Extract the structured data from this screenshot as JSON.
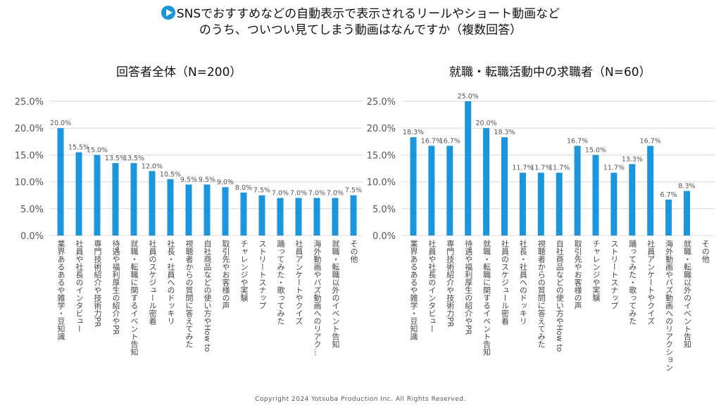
{
  "title": {
    "icon": "play-icon",
    "line1": "SNSでおすすめなどの自動表示で表示されるリールやショート動画など",
    "line2": "のうち、ついつい見てしまう動画はなんですか（複数回答）"
  },
  "footer": "Copyright 2024  Yotsuba  Production  Inc.   All  Rights  Reserved.",
  "chart_data": [
    {
      "type": "bar",
      "title": "回答者全体（N=200）",
      "ylim": [
        0,
        25
      ],
      "yticks": [
        "0.0%",
        "5.0%",
        "10.0%",
        "15.0%",
        "20.0%",
        "25.0%"
      ],
      "grid": true,
      "color": "#1a96dc",
      "categories": [
        "業界あるあるや雑学・豆知識",
        "社員や社長のインタビュー",
        "専門技術紹介や技術力PR",
        "待遇や福利厚生の紹介やPR",
        "就職・転職に関するイベント告知",
        "社員のスケジュール密着",
        "社長・社員へのドッキリ",
        "視聴者からの質問に答えてみた",
        "自社商品などの使い方やHow to",
        "取引先やお客様の声",
        "チャレンジや実験",
        "ストリートスナップ",
        "踊ってみた・歌ってみた",
        "社員アンケートやクイズ",
        "海外動画やバズ動画へのリアク…",
        "就職・転職以外のイベント告知",
        "その他"
      ],
      "values": [
        20.0,
        15.5,
        15.0,
        13.5,
        13.5,
        12.0,
        10.5,
        9.5,
        9.5,
        9.0,
        8.0,
        7.5,
        7.0,
        7.0,
        7.0,
        7.0,
        7.5
      ],
      "labels": [
        "20.0%",
        "15.5%",
        "15.0%",
        "13.5%",
        "13.5%",
        "12.0%",
        "10.5%",
        "9.5%",
        "9.5%",
        "9.0%",
        "8.0%",
        "7.5%",
        "7.0%",
        "7.0%",
        "7.0%",
        "7.0%",
        "7.5%"
      ]
    },
    {
      "type": "bar",
      "title": "就職・転職活動中の求職者（N=60）",
      "ylim": [
        0,
        25
      ],
      "yticks": [
        "0.0%",
        "5.0%",
        "10.0%",
        "15.0%",
        "20.0%",
        "25.0%"
      ],
      "grid": true,
      "color": "#1a96dc",
      "categories": [
        "業界あるあるや雑学・豆知識",
        "社員や社長のインタビュー",
        "専門技術紹介や技術力PR",
        "待遇や福利厚生の紹介やPR",
        "就職・転職に関するイベント告知",
        "社員のスケジュール密着",
        "社長・社員へのドッキリ",
        "視聴者からの質問に答えてみた",
        "自社商品などの使い方やHow to",
        "取引先やお客様の声",
        "チャレンジや実験",
        "ストリートスナップ",
        "踊ってみた・歌ってみた",
        "社員アンケートやクイズ",
        "海外動画やバズ動画へのリアクション",
        "就職・転職以外のイベント告知",
        "その他"
      ],
      "values": [
        18.3,
        16.7,
        16.7,
        25.0,
        20.0,
        18.3,
        11.7,
        11.7,
        11.7,
        16.7,
        15.0,
        11.7,
        13.3,
        16.7,
        6.7,
        8.3,
        0
      ],
      "labels": [
        "18.3%",
        "16.7%",
        "16.7%",
        "25.0%",
        "20.0%",
        "18.3%",
        "11.7%",
        "11.7%",
        "11.7%",
        "16.7%",
        "15.0%",
        "11.7%",
        "13.3%",
        "16.7%",
        "6.7%",
        "8.3%",
        ""
      ]
    }
  ]
}
